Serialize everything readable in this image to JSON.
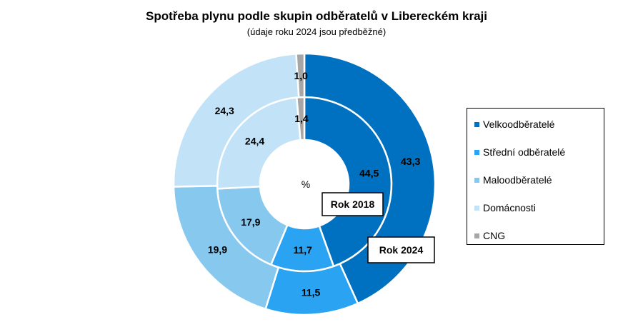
{
  "chart_data": {
    "type": "pie",
    "subtype": "double-doughnut",
    "title": "Spotřeba plynu podle skupin odběratelů v Libereckém kraji",
    "subtitle": "(údaje roku 2024 jsou předběžné)",
    "center_label": "%",
    "categories": [
      "Velkoodběratelé",
      "Střední odběratelé",
      "Maloodběratelé",
      "Domácnosti",
      "CNG"
    ],
    "value_labels": [
      "44,5",
      "11,7",
      "17,9",
      "24,4",
      "1,4",
      "43,3",
      "11,5",
      "19,9",
      "24,3",
      "1,0"
    ],
    "colors": [
      "#0070C0",
      "#29A3F2",
      "#86C8EE",
      "#C2E3F7",
      "#A6A6A6"
    ],
    "series": [
      {
        "name": "Rok 2018",
        "ring": "inner",
        "values": [
          44.5,
          11.7,
          17.9,
          24.4,
          1.4
        ]
      },
      {
        "name": "Rok 2024",
        "ring": "outer",
        "values": [
          43.3,
          11.5,
          19.9,
          24.3,
          1.0
        ]
      }
    ],
    "legend_position": "right"
  }
}
